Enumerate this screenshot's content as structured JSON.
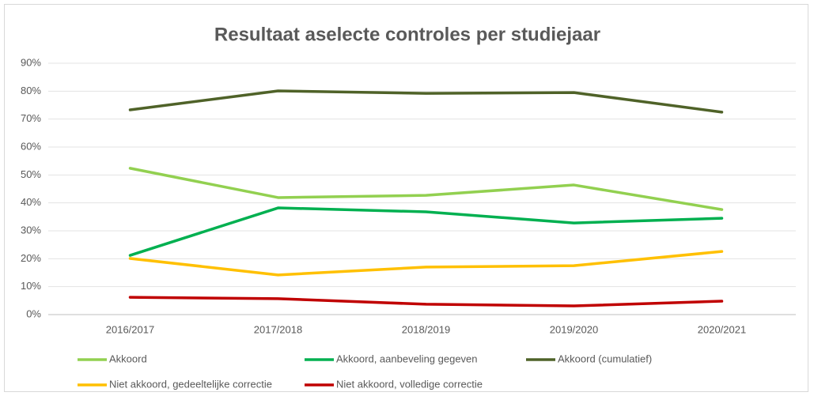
{
  "chart_data": {
    "type": "line",
    "title": "Resultaat aselecte controles per studiejaar",
    "categories": [
      "2016/2017",
      "2017/2018",
      "2018/2019",
      "2019/2020",
      "2020/2021"
    ],
    "series": [
      {
        "name": "Akkoord",
        "color": "#92d050",
        "values": [
          52.4,
          41.9,
          42.7,
          46.4,
          37.6
        ]
      },
      {
        "name": "Akkoord, aanbeveling gegeven",
        "color": "#00b050",
        "values": [
          21.2,
          38.2,
          36.8,
          32.8,
          34.5
        ]
      },
      {
        "name": "Akkoord (cumulatief)",
        "color": "#4f6228",
        "values": [
          73.3,
          80.1,
          79.2,
          79.5,
          72.5
        ]
      },
      {
        "name": "Niet akkoord, gedeeltelijke correctie",
        "color": "#ffc000",
        "values": [
          20.1,
          14.2,
          17.0,
          17.5,
          22.6
        ]
      },
      {
        "name": "Niet akkoord, volledige correctie",
        "color": "#c00000",
        "values": [
          6.2,
          5.7,
          3.7,
          3.1,
          4.8
        ]
      }
    ],
    "ylim": [
      0,
      90
    ],
    "yticks": [
      {
        "value": 0,
        "label": "0%"
      },
      {
        "value": 10,
        "label": "10%"
      },
      {
        "value": 20,
        "label": "20%"
      },
      {
        "value": 30,
        "label": "30%"
      },
      {
        "value": 40,
        "label": "40%"
      },
      {
        "value": 50,
        "label": "50%"
      },
      {
        "value": 60,
        "label": "60%"
      },
      {
        "value": 70,
        "label": "70%"
      },
      {
        "value": 80,
        "label": "80%"
      },
      {
        "value": 90,
        "label": "90%"
      }
    ],
    "grid": true,
    "legend": "bottom"
  }
}
